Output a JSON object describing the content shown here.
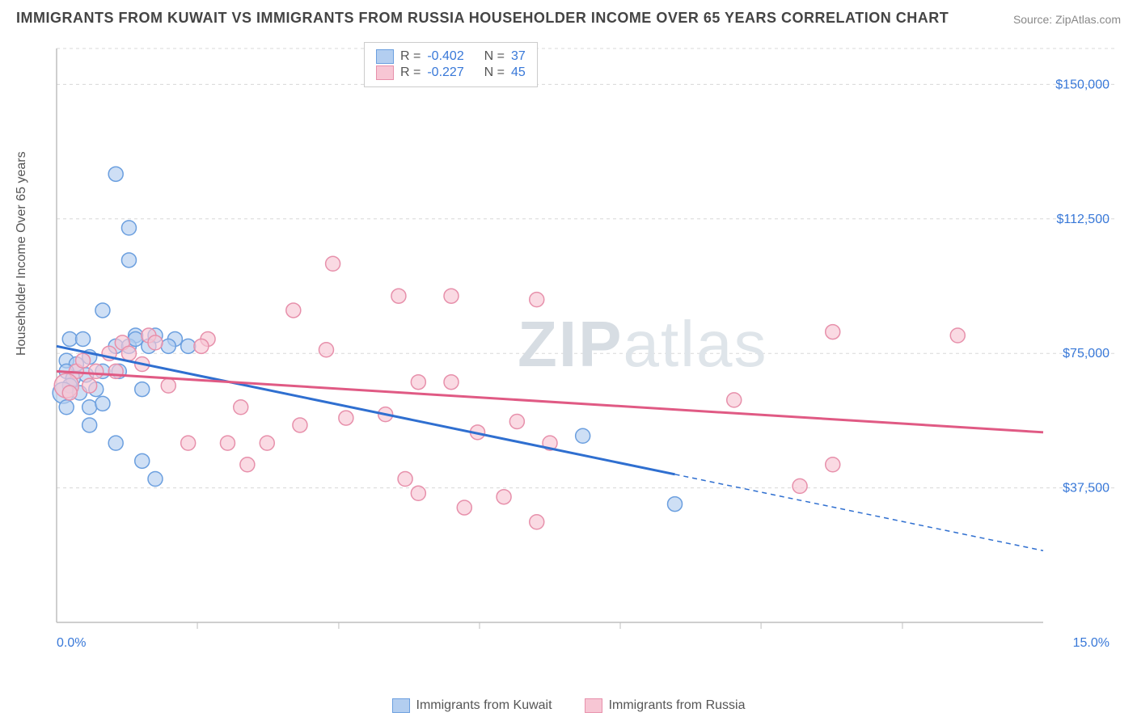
{
  "title": "IMMIGRANTS FROM KUWAIT VS IMMIGRANTS FROM RUSSIA HOUSEHOLDER INCOME OVER 65 YEARS CORRELATION CHART",
  "source": "Source: ZipAtlas.com",
  "watermark_bold": "ZIP",
  "watermark_thin": "atlas",
  "y_axis_label": "Householder Income Over 65 years",
  "chart": {
    "type": "scatter",
    "xlim": [
      0,
      15
    ],
    "ylim": [
      0,
      160000
    ],
    "x_ticks": [
      0,
      15
    ],
    "x_tick_labels": [
      "0.0%",
      "15.0%"
    ],
    "x_minor_ticks": [
      2.14,
      4.29,
      6.43,
      8.57,
      10.71,
      12.86
    ],
    "y_ticks": [
      37500,
      75000,
      112500,
      150000
    ],
    "y_tick_labels": [
      "$37,500",
      "$75,000",
      "$112,500",
      "$150,000"
    ],
    "grid_color": "#d8d8d8",
    "axis_color": "#bfbfbf",
    "background_color": "#ffffff",
    "series": [
      {
        "name": "Immigrants from Kuwait",
        "color_fill": "#b3cef0",
        "color_stroke": "#6b9fdf",
        "opacity": 0.65,
        "marker_radius": 9,
        "trend_color": "#2f6fd0",
        "trend_width": 3,
        "trend_y_at_x0": 77000,
        "trend_y_at_x15": 20000,
        "trend_solid_until_x": 9.4,
        "R": "-0.402",
        "N": "37",
        "points": [
          {
            "x": 0.9,
            "y": 125000
          },
          {
            "x": 1.1,
            "y": 110000
          },
          {
            "x": 1.1,
            "y": 101000
          },
          {
            "x": 0.7,
            "y": 87000
          },
          {
            "x": 0.2,
            "y": 79000
          },
          {
            "x": 0.4,
            "y": 79000
          },
          {
            "x": 1.2,
            "y": 80000
          },
          {
            "x": 1.5,
            "y": 80000
          },
          {
            "x": 1.8,
            "y": 79000
          },
          {
            "x": 0.15,
            "y": 73000
          },
          {
            "x": 0.3,
            "y": 72000
          },
          {
            "x": 0.5,
            "y": 74000
          },
          {
            "x": 0.9,
            "y": 77000
          },
          {
            "x": 1.1,
            "y": 77000
          },
          {
            "x": 1.4,
            "y": 77000
          },
          {
            "x": 1.7,
            "y": 77000
          },
          {
            "x": 2.0,
            "y": 77000
          },
          {
            "x": 0.15,
            "y": 70000
          },
          {
            "x": 0.25,
            "y": 68000
          },
          {
            "x": 0.45,
            "y": 69000
          },
          {
            "x": 0.7,
            "y": 70000
          },
          {
            "x": 0.95,
            "y": 70000
          },
          {
            "x": 1.3,
            "y": 65000
          },
          {
            "x": 0.2,
            "y": 66000
          },
          {
            "x": 0.1,
            "y": 64000,
            "r": 13
          },
          {
            "x": 0.35,
            "y": 64000
          },
          {
            "x": 0.6,
            "y": 65000
          },
          {
            "x": 0.5,
            "y": 60000
          },
          {
            "x": 0.7,
            "y": 61000
          },
          {
            "x": 0.15,
            "y": 60000
          },
          {
            "x": 0.5,
            "y": 55000
          },
          {
            "x": 0.9,
            "y": 50000
          },
          {
            "x": 1.3,
            "y": 45000
          },
          {
            "x": 1.5,
            "y": 40000
          },
          {
            "x": 1.2,
            "y": 79000
          },
          {
            "x": 8.0,
            "y": 52000
          },
          {
            "x": 9.4,
            "y": 33000
          }
        ]
      },
      {
        "name": "Immigrants from Russia",
        "color_fill": "#f7c6d4",
        "color_stroke": "#e790ab",
        "opacity": 0.65,
        "marker_radius": 9,
        "trend_color": "#e05a84",
        "trend_width": 3,
        "trend_y_at_x0": 70000,
        "trend_y_at_x15": 53000,
        "trend_solid_until_x": 15,
        "R": "-0.227",
        "N": "45",
        "points": [
          {
            "x": 4.2,
            "y": 100000
          },
          {
            "x": 5.2,
            "y": 91000
          },
          {
            "x": 6.0,
            "y": 91000
          },
          {
            "x": 7.3,
            "y": 90000
          },
          {
            "x": 3.6,
            "y": 87000
          },
          {
            "x": 11.8,
            "y": 81000
          },
          {
            "x": 13.7,
            "y": 80000
          },
          {
            "x": 1.4,
            "y": 80000
          },
          {
            "x": 2.3,
            "y": 79000
          },
          {
            "x": 1.0,
            "y": 78000
          },
          {
            "x": 1.1,
            "y": 75000
          },
          {
            "x": 1.5,
            "y": 78000
          },
          {
            "x": 2.2,
            "y": 77000
          },
          {
            "x": 0.8,
            "y": 75000
          },
          {
            "x": 4.1,
            "y": 76000
          },
          {
            "x": 0.3,
            "y": 70000
          },
          {
            "x": 0.6,
            "y": 70000
          },
          {
            "x": 0.9,
            "y": 70000
          },
          {
            "x": 1.3,
            "y": 72000
          },
          {
            "x": 0.15,
            "y": 66000,
            "r": 15
          },
          {
            "x": 0.5,
            "y": 66000
          },
          {
            "x": 1.7,
            "y": 66000
          },
          {
            "x": 5.5,
            "y": 67000
          },
          {
            "x": 6.0,
            "y": 67000
          },
          {
            "x": 10.3,
            "y": 62000
          },
          {
            "x": 7.0,
            "y": 56000
          },
          {
            "x": 2.8,
            "y": 60000
          },
          {
            "x": 4.4,
            "y": 57000
          },
          {
            "x": 5.0,
            "y": 58000
          },
          {
            "x": 3.7,
            "y": 55000
          },
          {
            "x": 2.0,
            "y": 50000
          },
          {
            "x": 2.6,
            "y": 50000
          },
          {
            "x": 3.2,
            "y": 50000
          },
          {
            "x": 6.4,
            "y": 53000
          },
          {
            "x": 7.5,
            "y": 50000
          },
          {
            "x": 2.9,
            "y": 44000
          },
          {
            "x": 11.8,
            "y": 44000
          },
          {
            "x": 5.3,
            "y": 40000
          },
          {
            "x": 11.3,
            "y": 38000
          },
          {
            "x": 5.5,
            "y": 36000
          },
          {
            "x": 6.2,
            "y": 32000
          },
          {
            "x": 6.8,
            "y": 35000
          },
          {
            "x": 7.3,
            "y": 28000
          },
          {
            "x": 0.2,
            "y": 64000
          },
          {
            "x": 0.4,
            "y": 73000
          }
        ]
      }
    ]
  },
  "stats_labels": {
    "R": "R =",
    "N": "N ="
  },
  "bottom_legend": [
    {
      "swatch": "blue",
      "label": "Immigrants from Kuwait"
    },
    {
      "swatch": "pink",
      "label": "Immigrants from Russia"
    }
  ]
}
